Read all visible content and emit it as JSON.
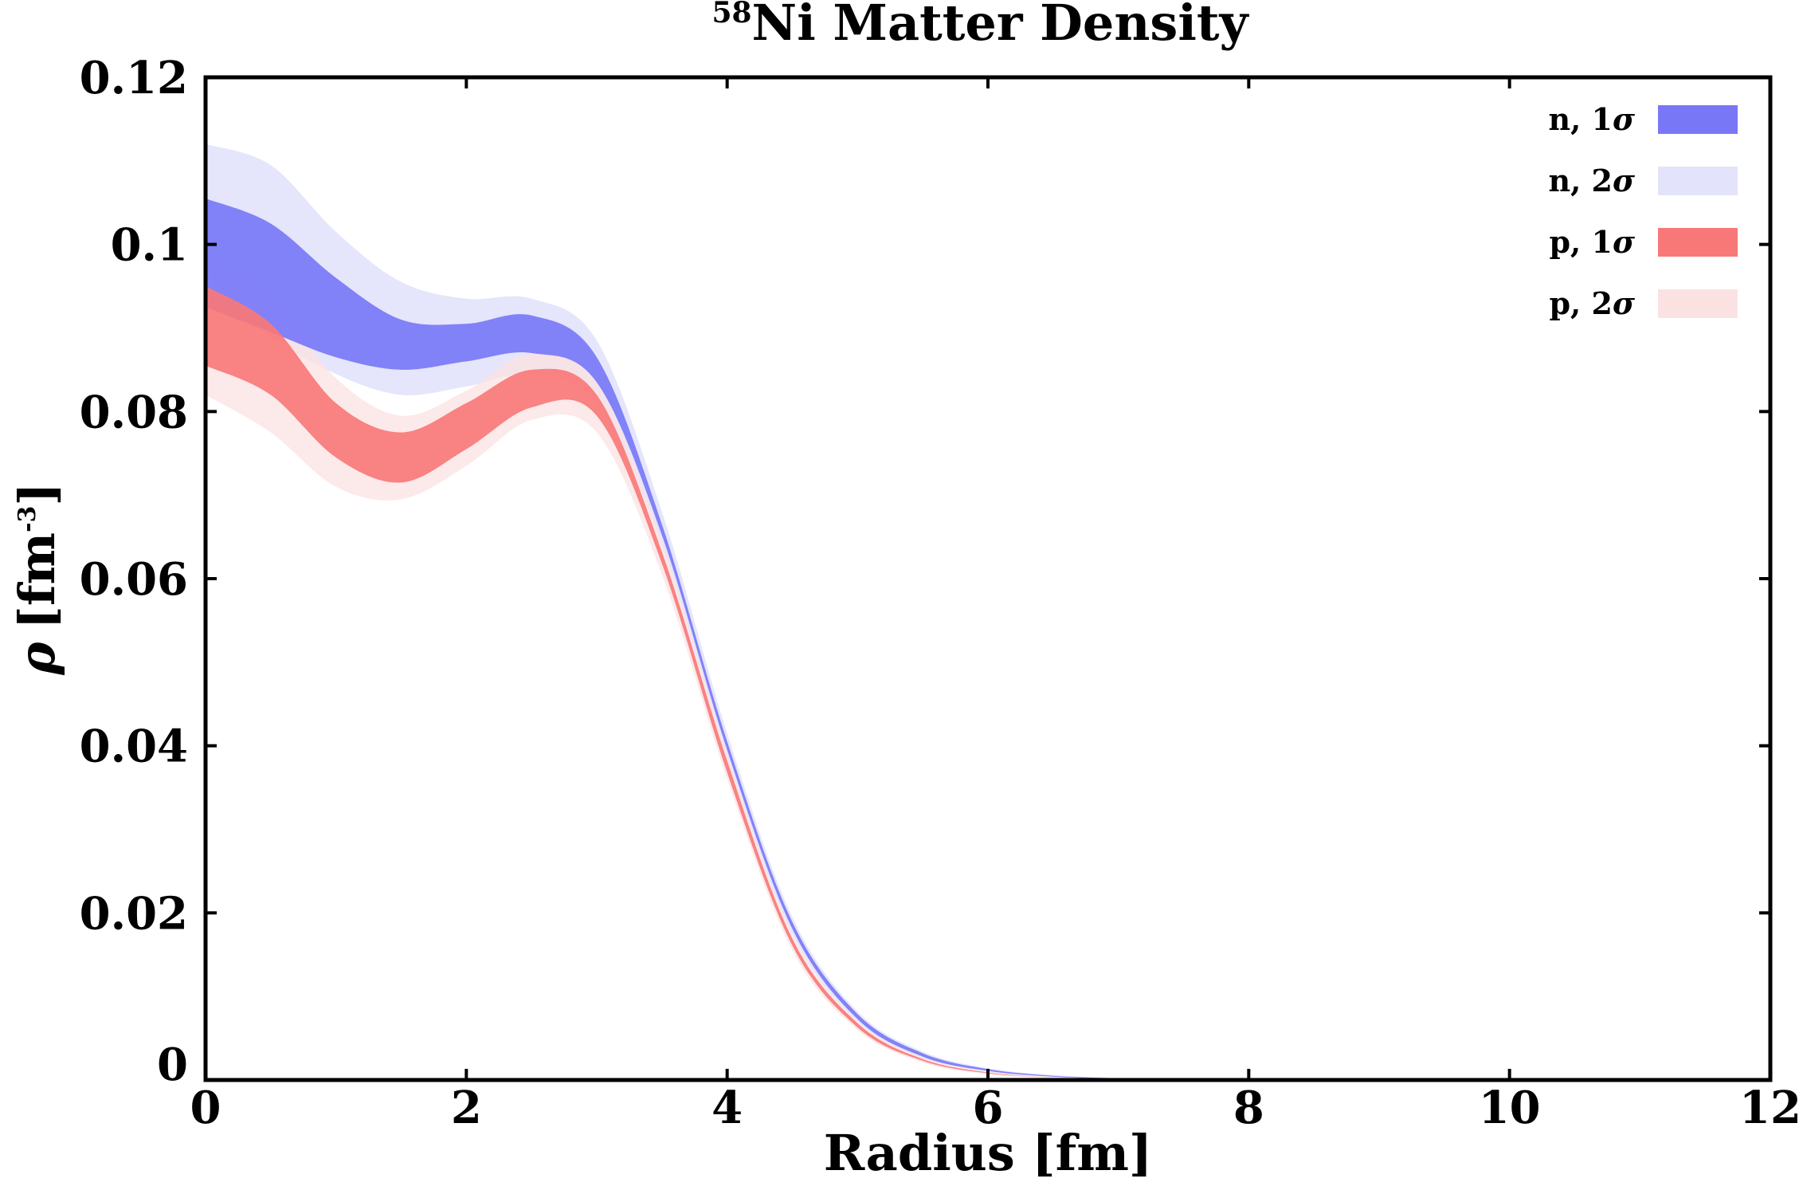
{
  "chart_data": {
    "type": "area",
    "title_super": "58",
    "title": "Ni Matter Density",
    "xlabel": "Radius [fm]",
    "ylabel_symbol": "ρ",
    "ylabel_unit": "[fm",
    "ylabel_exp": "-3",
    "ylabel_close": "]",
    "xlim": [
      0,
      12
    ],
    "ylim": [
      0,
      0.12
    ],
    "x_ticks": [
      0,
      2,
      4,
      6,
      8,
      10,
      12
    ],
    "x_tick_labels": [
      "0",
      "2",
      "4",
      "6",
      "8",
      "10",
      "12"
    ],
    "y_ticks": [
      0,
      0.02,
      0.04,
      0.06,
      0.08,
      0.1,
      0.12
    ],
    "y_tick_labels": [
      "0",
      "0.02",
      "0.04",
      "0.06",
      "0.08",
      "0.1",
      "0.12"
    ],
    "grid": false,
    "legend_position": "top-right",
    "x": [
      0,
      0.5,
      1.0,
      1.5,
      2.0,
      2.5,
      3.0,
      3.5,
      4.0,
      4.5,
      5.0,
      5.5,
      6.0,
      6.5,
      7.0
    ],
    "series": [
      {
        "name": "n, 2σ",
        "color": "#e3e3fb",
        "upper": [
          0.112,
          0.1095,
          0.1015,
          0.0955,
          0.0935,
          0.0935,
          0.0885,
          0.068,
          0.0415,
          0.0195,
          0.0082,
          0.0034,
          0.0014,
          0.0006,
          0.0002
        ],
        "lower": [
          0.0965,
          0.089,
          0.0845,
          0.082,
          0.083,
          0.0845,
          0.081,
          0.064,
          0.0385,
          0.0175,
          0.007,
          0.0026,
          0.001,
          0.0003,
          0.0001
        ]
      },
      {
        "name": "p, 2σ",
        "color": "#fbe2e2",
        "upper": [
          0.0995,
          0.094,
          0.084,
          0.0795,
          0.0825,
          0.087,
          0.0835,
          0.0645,
          0.039,
          0.0175,
          0.0071,
          0.0027,
          0.001,
          0.0004,
          0.0001
        ],
        "lower": [
          0.082,
          0.0775,
          0.071,
          0.0695,
          0.0735,
          0.079,
          0.0775,
          0.0605,
          0.036,
          0.0155,
          0.006,
          0.0021,
          0.0007,
          0.0002,
          0.0
        ],
        "layer": "top"
      },
      {
        "name": "n, 1σ",
        "color": "#7878f7",
        "upper": [
          0.1055,
          0.1025,
          0.096,
          0.091,
          0.0905,
          0.0915,
          0.0865,
          0.0665,
          0.0405,
          0.0189,
          0.0079,
          0.0032,
          0.0013,
          0.0005,
          0.0002
        ],
        "lower": [
          0.0925,
          0.0895,
          0.0865,
          0.085,
          0.086,
          0.087,
          0.0835,
          0.0652,
          0.0395,
          0.0181,
          0.0073,
          0.0028,
          0.0011,
          0.0004,
          0.0001
        ]
      },
      {
        "name": "p, 1σ",
        "color": "#f87878",
        "upper": [
          0.095,
          0.0905,
          0.081,
          0.0775,
          0.081,
          0.085,
          0.082,
          0.0632,
          0.0382,
          0.0169,
          0.0068,
          0.0025,
          0.0009,
          0.0003,
          0.0001
        ],
        "lower": [
          0.0855,
          0.082,
          0.0745,
          0.0715,
          0.0755,
          0.0805,
          0.0795,
          0.0618,
          0.0368,
          0.0161,
          0.0063,
          0.0023,
          0.0008,
          0.0003,
          0.0
        ]
      }
    ],
    "legend": [
      {
        "label_prefix": "n, 1",
        "symbol": "σ",
        "color": "#7878f7"
      },
      {
        "label_prefix": "n, 2",
        "symbol": "σ",
        "color": "#e3e3fb"
      },
      {
        "label_prefix": "p, 1",
        "symbol": "σ",
        "color": "#f87878"
      },
      {
        "label_prefix": "p, 2",
        "symbol": "σ",
        "color": "#fbe2e2"
      }
    ]
  }
}
